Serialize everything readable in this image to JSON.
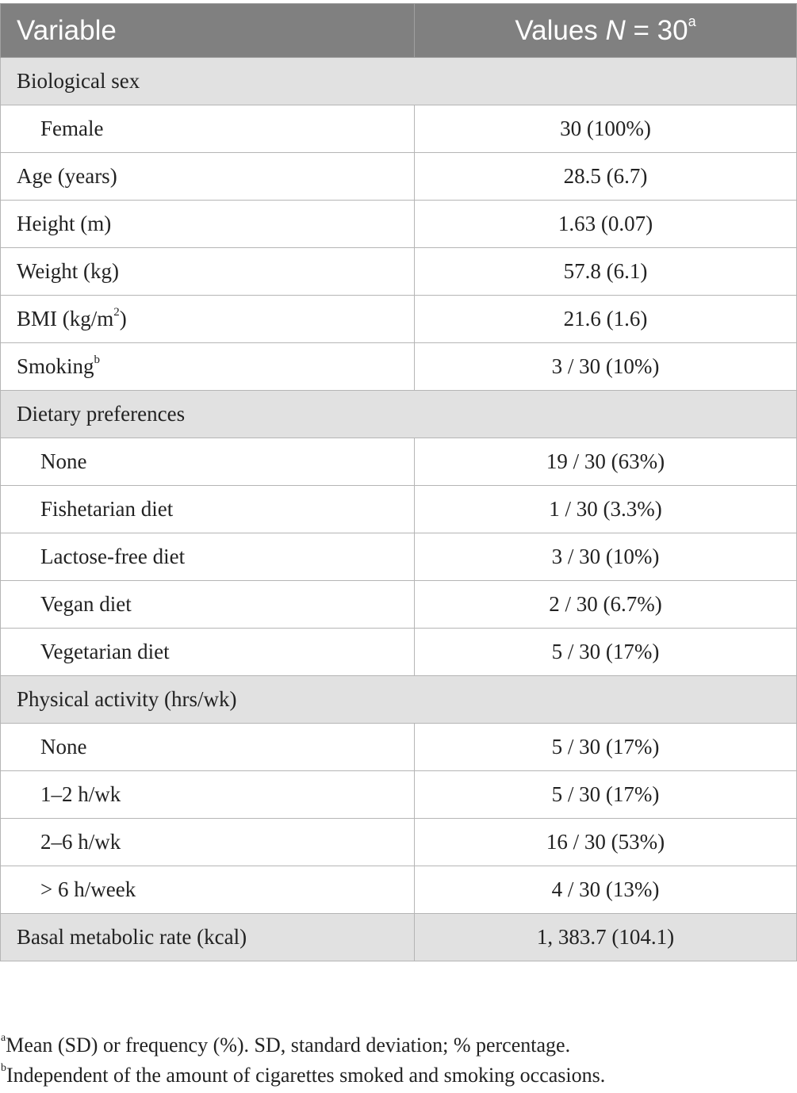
{
  "header": {
    "col1": "Variable",
    "col2_prefix": "Values ",
    "col2_italic": "N",
    "col2_suffix": " = 30",
    "col2_sup": "a"
  },
  "rows": {
    "biological_sex": "Biological sex",
    "female": {
      "label": "Female",
      "value": "30 (100%)"
    },
    "age": {
      "label": "Age (years)",
      "value": "28.5 (6.7)"
    },
    "height": {
      "label": "Height (m)",
      "value": "1.63 (0.07)"
    },
    "weight": {
      "label": "Weight (kg)",
      "value": "57.8 (6.1)"
    },
    "bmi": {
      "label_prefix": "BMI (kg/m",
      "label_sup": "2",
      "label_suffix": ")",
      "value": "21.6 (1.6)"
    },
    "smoking": {
      "label": "Smoking",
      "label_sup": "b",
      "value": "3 / 30 (10%)"
    },
    "dietary_preferences": "Dietary preferences",
    "diet_none": {
      "label": "None",
      "value": "19 / 30 (63%)"
    },
    "fishetarian": {
      "label": "Fishetarian diet",
      "value": "1 / 30 (3.3%)"
    },
    "lactose_free": {
      "label": "Lactose-free diet",
      "value": "3 / 30 (10%)"
    },
    "vegan": {
      "label": "Vegan diet",
      "value": "2 / 30 (6.7%)"
    },
    "vegetarian": {
      "label": "Vegetarian diet",
      "value": "5 / 30 (17%)"
    },
    "physical_activity": "Physical activity (hrs/wk)",
    "pa_none": {
      "label": "None",
      "value": "5 / 30 (17%)"
    },
    "pa_1_2": {
      "label": "1–2 h/wk",
      "value": "5 / 30 (17%)"
    },
    "pa_2_6": {
      "label": "2–6 h/wk",
      "value": "16 / 30 (53%)"
    },
    "pa_6plus": {
      "label": "> 6 h/week",
      "value": "4 / 30 (13%)"
    },
    "bmr": {
      "label": "Basal metabolic rate (kcal)",
      "value": "1, 383.7 (104.1)"
    }
  },
  "footnotes": {
    "a_mark": "a",
    "a_text": "Mean (SD) or frequency (%). SD, standard deviation; % percentage.",
    "b_mark": "b",
    "b_text": "Independent of the amount of cigarettes smoked and smoking occasions."
  },
  "colors": {
    "header_bg": "#808080",
    "section_bg": "#e1e1e1",
    "border": "#b5b5b5"
  }
}
